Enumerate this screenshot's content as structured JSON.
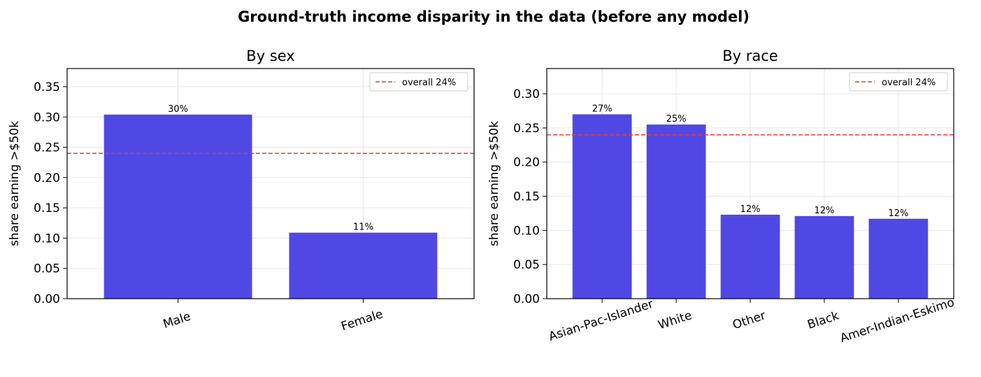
{
  "suptitle": "Ground-truth income disparity in the data (before any model)",
  "chart_data": [
    {
      "type": "bar",
      "title": "By sex",
      "xlabel": "",
      "ylabel": "share earning >$50k",
      "categories": [
        "Male",
        "Female"
      ],
      "values": [
        0.304,
        0.109
      ],
      "value_labels": [
        "30%",
        "11%"
      ],
      "ylim": [
        0,
        0.38
      ],
      "yticks": [
        0.0,
        0.05,
        0.1,
        0.15,
        0.2,
        0.25,
        0.3,
        0.35
      ],
      "ytick_labels": [
        "0.00",
        "0.05",
        "0.10",
        "0.15",
        "0.20",
        "0.25",
        "0.30",
        "0.35"
      ],
      "reference_line": {
        "value": 0.24,
        "label": "overall 24%",
        "color": "#e8393a"
      },
      "bar_color": "#4f48e5",
      "grid": true,
      "legend_position": "top-right"
    },
    {
      "type": "bar",
      "title": "By race",
      "xlabel": "",
      "ylabel": "share earning >$50k",
      "categories": [
        "Asian-Pac-Islander",
        "White",
        "Other",
        "Black",
        "Amer-Indian-Eskimo"
      ],
      "values": [
        0.27,
        0.255,
        0.123,
        0.121,
        0.117
      ],
      "value_labels": [
        "27%",
        "25%",
        "12%",
        "12%",
        "12%"
      ],
      "ylim": [
        0,
        0.337
      ],
      "yticks": [
        0.0,
        0.05,
        0.1,
        0.15,
        0.2,
        0.25,
        0.3
      ],
      "ytick_labels": [
        "0.00",
        "0.05",
        "0.10",
        "0.15",
        "0.20",
        "0.25",
        "0.30"
      ],
      "reference_line": {
        "value": 0.24,
        "label": "overall 24%",
        "color": "#e8393a"
      },
      "bar_color": "#4f48e5",
      "grid": true,
      "legend_position": "top-right"
    }
  ]
}
